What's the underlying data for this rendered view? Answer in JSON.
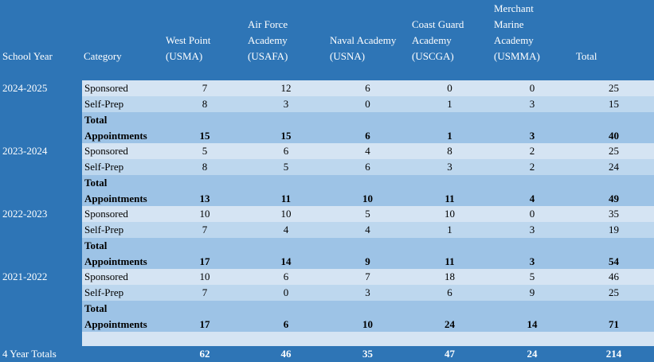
{
  "headers": {
    "school_year": "School Year",
    "category": "Category",
    "usma": [
      "West Point",
      "(USMA)"
    ],
    "usafa": [
      "Air Force",
      "Academy",
      "(USAFA)"
    ],
    "usna": [
      "Naval Academy",
      "(USNA)"
    ],
    "uscga": [
      "Coast Guard",
      "Academy",
      "(USCGA)"
    ],
    "usmma": [
      "Merchant",
      "Marine",
      "Academy",
      "(USMMA)"
    ],
    "total": "Total"
  },
  "years": [
    {
      "label": "2024-2025",
      "rows": [
        {
          "category": "Sponsored",
          "values": [
            "7",
            "12",
            "6",
            "0",
            "0",
            "25"
          ]
        },
        {
          "category": "Self-Prep",
          "values": [
            "8",
            "3",
            "0",
            "1",
            "3",
            "15"
          ]
        },
        {
          "category": [
            "Total",
            "Appointments"
          ],
          "values": [
            "15",
            "15",
            "6",
            "1",
            "3",
            "40"
          ]
        }
      ]
    },
    {
      "label": "2023-2024",
      "rows": [
        {
          "category": "Sponsored",
          "values": [
            "5",
            "6",
            "4",
            "8",
            "2",
            "25"
          ]
        },
        {
          "category": "Self-Prep",
          "values": [
            "8",
            "5",
            "6",
            "3",
            "2",
            "24"
          ]
        },
        {
          "category": [
            "Total",
            "Appointments"
          ],
          "values": [
            "13",
            "11",
            "10",
            "11",
            "4",
            "49"
          ]
        }
      ]
    },
    {
      "label": "2022-2023",
      "rows": [
        {
          "category": "Sponsored",
          "values": [
            "10",
            "10",
            "5",
            "10",
            "0",
            "35"
          ]
        },
        {
          "category": "Self-Prep",
          "values": [
            "7",
            "4",
            "4",
            "1",
            "3",
            "19"
          ]
        },
        {
          "category": [
            "Total",
            "Appointments"
          ],
          "values": [
            "17",
            "14",
            "9",
            "11",
            "3",
            "54"
          ]
        }
      ]
    },
    {
      "label": "2021-2022",
      "rows": [
        {
          "category": "Sponsored",
          "values": [
            "10",
            "6",
            "7",
            "18",
            "5",
            "46"
          ]
        },
        {
          "category": "Self-Prep",
          "values": [
            "7",
            "0",
            "3",
            "6",
            "9",
            "25"
          ]
        },
        {
          "category": [
            "Total",
            "Appointments"
          ],
          "values": [
            "17",
            "6",
            "10",
            "24",
            "14",
            "71"
          ]
        }
      ]
    }
  ],
  "footer": {
    "label": "4 Year Totals",
    "values": [
      "62",
      "46",
      "35",
      "47",
      "24",
      "214"
    ]
  }
}
